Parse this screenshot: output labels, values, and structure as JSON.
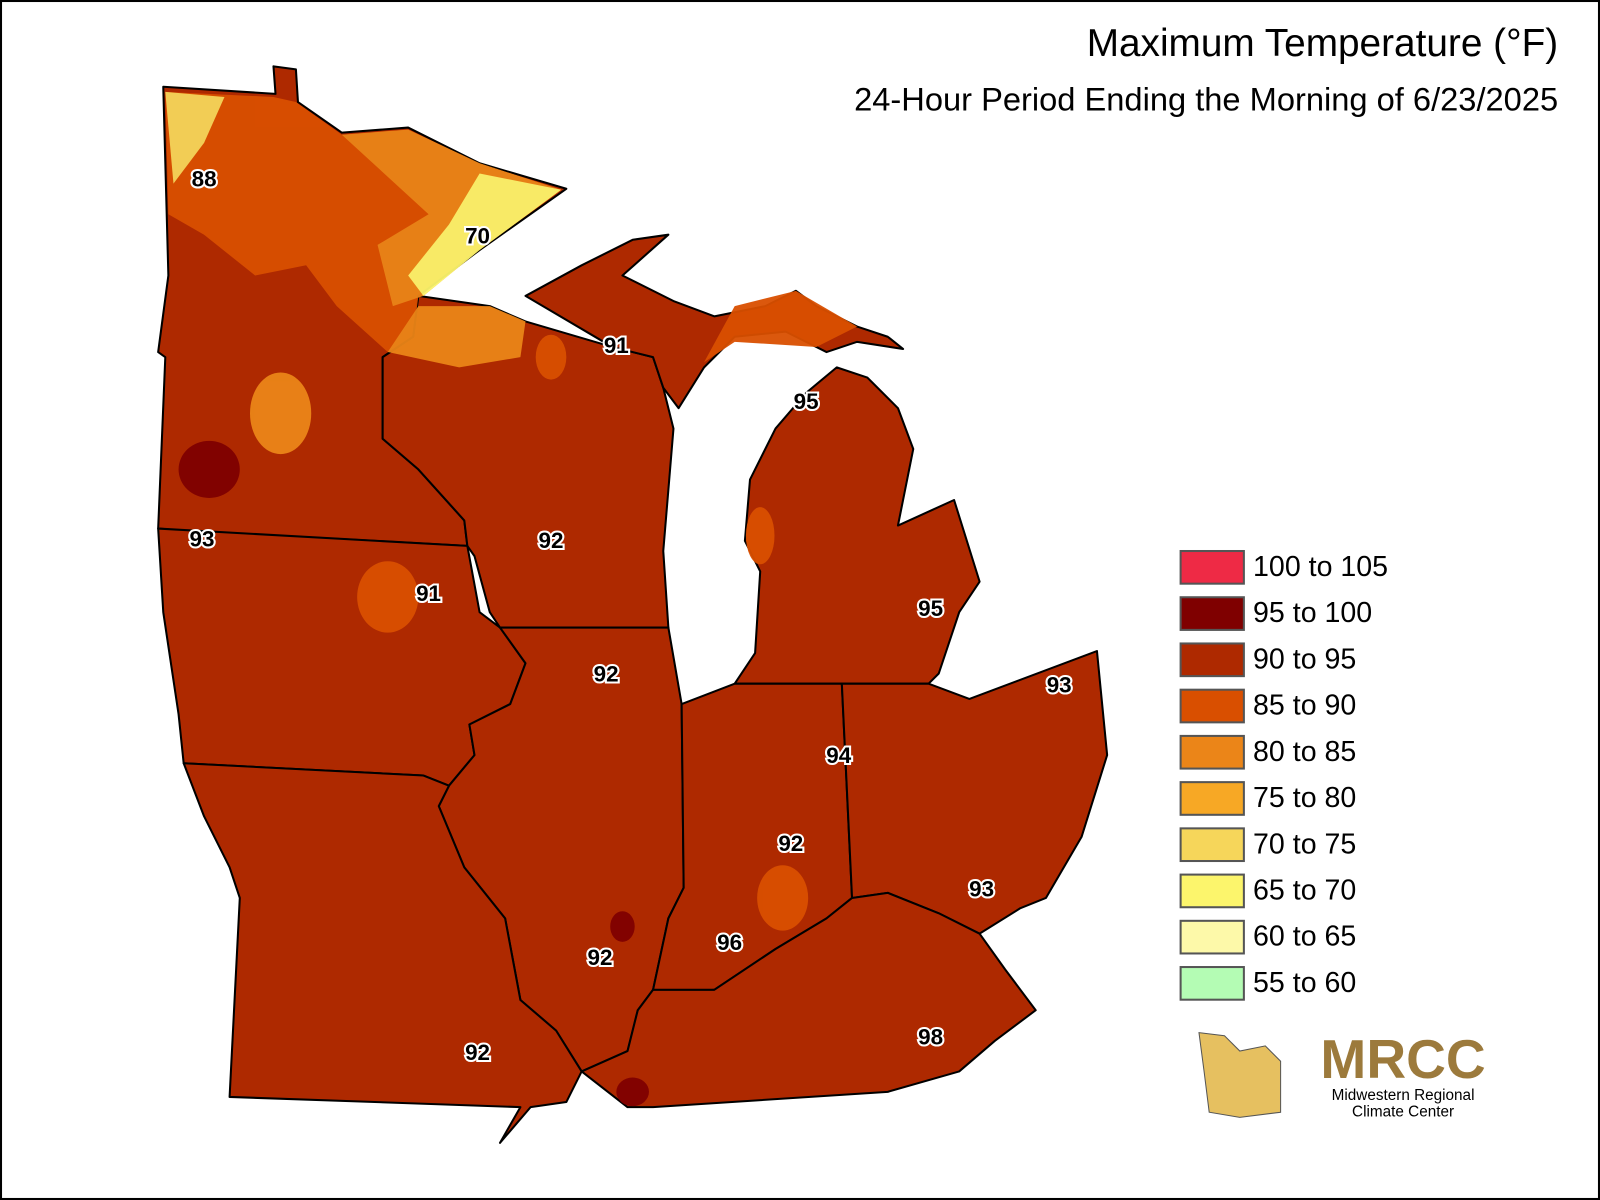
{
  "title": "Maximum Temperature (°F)",
  "subtitle": "24-Hour Period Ending the Morning of 6/23/2025",
  "legend": [
    {
      "label": "100 to 105",
      "color": "#ee2a45"
    },
    {
      "label": "95 to 100",
      "color": "#7f0000"
    },
    {
      "label": "90 to 95",
      "color": "#ae2900"
    },
    {
      "label": "85 to 90",
      "color": "#d94f00"
    },
    {
      "label": "80 to 85",
      "color": "#eb8518"
    },
    {
      "label": "75 to 80",
      "color": "#f7a825"
    },
    {
      "label": "70 to 75",
      "color": "#f6d65a"
    },
    {
      "label": "65 to 70",
      "color": "#fcf56c"
    },
    {
      "label": "60 to 65",
      "color": "#fdf9a9"
    },
    {
      "label": "55 to 60",
      "color": "#b4fcb4"
    }
  ],
  "station_labels": [
    88,
    70,
    91,
    95,
    93,
    92,
    91,
    95,
    92,
    93,
    94,
    92,
    93,
    96,
    92,
    98,
    92
  ],
  "logo": {
    "name": "MRCC",
    "line1": "Midwestern Regional",
    "line2": "Climate Center"
  }
}
